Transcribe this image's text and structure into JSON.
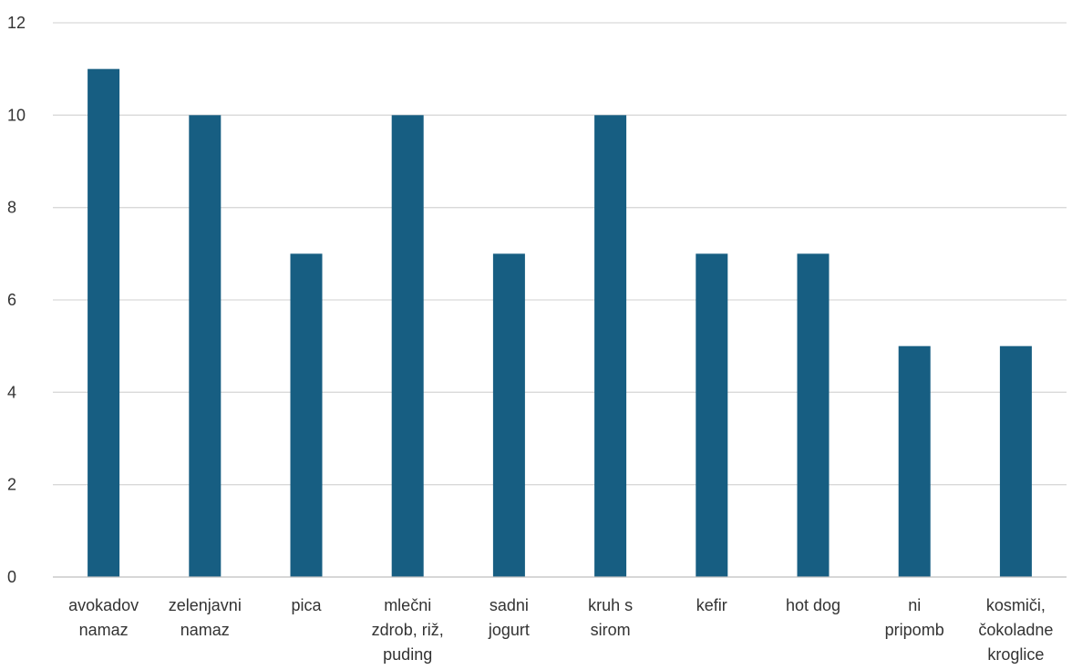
{
  "chart_data": {
    "type": "bar",
    "title": "",
    "xlabel": "",
    "ylabel": "",
    "ylim": [
      0,
      12
    ],
    "yticks": [
      0,
      2,
      4,
      6,
      8,
      10,
      12
    ],
    "grid": true,
    "legend": "none",
    "bar_color": "#175e82",
    "categories": [
      [
        "avokadov",
        "namaz"
      ],
      [
        "zelenjavni",
        "namaz"
      ],
      [
        "pica"
      ],
      [
        "mlečni",
        "zdrob, riž,",
        "puding"
      ],
      [
        "sadni",
        "jogurt"
      ],
      [
        "kruh s",
        "sirom"
      ],
      [
        "kefir"
      ],
      [
        "hot dog"
      ],
      [
        "ni",
        "pripomb"
      ],
      [
        "kosmiči,",
        "čokoladne",
        "kroglice"
      ]
    ],
    "values": [
      11,
      10,
      7,
      10,
      7,
      10,
      7,
      7,
      5,
      5
    ]
  }
}
